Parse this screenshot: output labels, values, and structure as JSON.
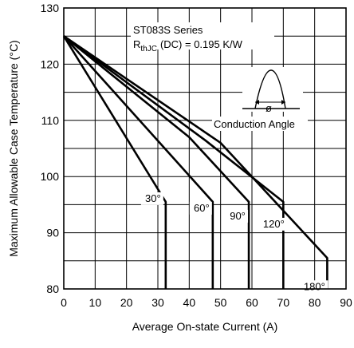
{
  "chart_data": {
    "type": "line",
    "title": "",
    "xlabel": "Average On-state Current (A)",
    "ylabel": "Maximum Allowable Case Temperature (°C)",
    "xlim": [
      0,
      90
    ],
    "ylim": [
      80,
      130
    ],
    "xticks": [
      0,
      10,
      20,
      30,
      40,
      50,
      60,
      70,
      80,
      90
    ],
    "yticks": [
      80,
      90,
      100,
      110,
      120,
      130
    ],
    "grid": true,
    "series": [
      {
        "name": "30°",
        "x": [
          0,
          32.5
        ],
        "y": [
          125,
          95.5
        ],
        "end_x": 32.5
      },
      {
        "name": "60°",
        "x": [
          0,
          47.5
        ],
        "y": [
          125,
          95.5
        ],
        "end_x": 47.5
      },
      {
        "name": "90°",
        "x": [
          0,
          40,
          59
        ],
        "y": [
          125,
          107,
          95.5
        ],
        "end_x": 59
      },
      {
        "name": "120°",
        "x": [
          0,
          45,
          70
        ],
        "y": [
          125,
          106.5,
          95.5
        ],
        "end_x": 70
      },
      {
        "name": "180°",
        "x": [
          0,
          50,
          84
        ],
        "y": [
          125,
          106,
          85.5
        ],
        "end_x": 84
      }
    ],
    "annotations": {
      "series_name": "ST083S Series",
      "rth_prefix": "R",
      "rth_sub": "thJC",
      "rth_suffix": "(DC) = 0.195 K/W",
      "waveform_symbol": "ø",
      "waveform_label": "Conduction Angle"
    }
  }
}
